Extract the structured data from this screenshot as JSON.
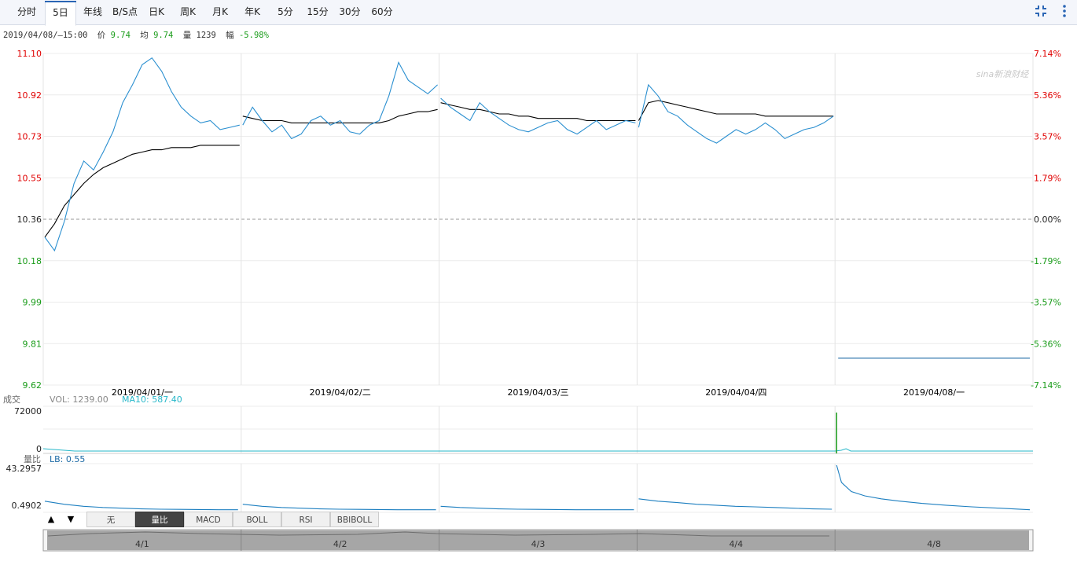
{
  "tabs": [
    {
      "label": "分时",
      "active": false
    },
    {
      "label": "5日",
      "active": true
    },
    {
      "label": "年线",
      "active": false
    },
    {
      "label": "B/S点",
      "active": false
    },
    {
      "label": "日K",
      "active": false
    },
    {
      "label": "周K",
      "active": false
    },
    {
      "label": "月K",
      "active": false
    },
    {
      "label": "年K",
      "active": false
    },
    {
      "label": "5分",
      "active": false
    },
    {
      "label": "15分",
      "active": false
    },
    {
      "label": "30分",
      "active": false
    },
    {
      "label": "60分",
      "active": false
    }
  ],
  "icons": {
    "shrink": "collapse-arrows-icon",
    "more": "more-vertical-icon"
  },
  "info": {
    "datetime": "2019/04/08/—15:00",
    "price_label": "价",
    "price": "9.74",
    "avg_label": "均",
    "avg": "9.74",
    "vol_label": "量",
    "vol": "1239",
    "chg_label": "幅",
    "chg": "-5.98%"
  },
  "watermark": "sina新浪财经",
  "colors": {
    "up": "#e00000",
    "down": "#1a9c1a",
    "price_line": "#2a8fd0",
    "avg_line": "#000000",
    "ma10": "#26b7c9",
    "axis_text": "#333333"
  },
  "chart_data": {
    "type": "line",
    "days": [
      "2019/04/01/一",
      "2019/04/02/二",
      "2019/04/03/三",
      "2019/04/04/四",
      "2019/04/08/一"
    ],
    "prev_close": 10.36,
    "ylim": [
      9.62,
      11.1
    ],
    "price_ticks": [
      "11.10",
      "10.92",
      "10.73",
      "10.55",
      "10.36",
      "10.18",
      "9.99",
      "9.81",
      "9.62"
    ],
    "pct_ticks": [
      "7.14%",
      "5.36%",
      "3.57%",
      "1.79%",
      "0.00%",
      "-1.79%",
      "-3.57%",
      "-5.36%",
      "-7.14%"
    ],
    "series": [
      {
        "day": "2019/04/01",
        "price": [
          10.28,
          10.22,
          10.35,
          10.52,
          10.62,
          10.58,
          10.66,
          10.75,
          10.88,
          10.96,
          11.05,
          11.08,
          11.02,
          10.93,
          10.86,
          10.82,
          10.79,
          10.8,
          10.76,
          10.77,
          10.78
        ],
        "avg": [
          10.28,
          10.34,
          10.42,
          10.47,
          10.52,
          10.56,
          10.59,
          10.61,
          10.63,
          10.65,
          10.66,
          10.67,
          10.67,
          10.68,
          10.68,
          10.68,
          10.69,
          10.69,
          10.69,
          10.69,
          10.69
        ]
      },
      {
        "day": "2019/04/02",
        "price": [
          10.78,
          10.86,
          10.8,
          10.75,
          10.78,
          10.72,
          10.74,
          10.8,
          10.82,
          10.78,
          10.8,
          10.75,
          10.74,
          10.78,
          10.8,
          10.91,
          11.06,
          10.98,
          10.95,
          10.92,
          10.96
        ],
        "avg": [
          10.82,
          10.81,
          10.8,
          10.8,
          10.8,
          10.79,
          10.79,
          10.79,
          10.79,
          10.79,
          10.79,
          10.79,
          10.79,
          10.79,
          10.79,
          10.8,
          10.82,
          10.83,
          10.84,
          10.84,
          10.85
        ]
      },
      {
        "day": "2019/04/03",
        "price": [
          10.9,
          10.86,
          10.83,
          10.8,
          10.88,
          10.84,
          10.81,
          10.78,
          10.76,
          10.75,
          10.77,
          10.79,
          10.8,
          10.76,
          10.74,
          10.77,
          10.8,
          10.76,
          10.78,
          10.8,
          10.79
        ],
        "avg": [
          10.88,
          10.87,
          10.86,
          10.85,
          10.85,
          10.84,
          10.83,
          10.83,
          10.82,
          10.82,
          10.81,
          10.81,
          10.81,
          10.81,
          10.81,
          10.8,
          10.8,
          10.8,
          10.8,
          10.8,
          10.8
        ]
      },
      {
        "day": "2019/04/04",
        "price": [
          10.77,
          10.96,
          10.91,
          10.84,
          10.82,
          10.78,
          10.75,
          10.72,
          10.7,
          10.73,
          10.76,
          10.74,
          10.76,
          10.79,
          10.76,
          10.72,
          10.74,
          10.76,
          10.77,
          10.79,
          10.82
        ],
        "avg": [
          10.8,
          10.88,
          10.89,
          10.88,
          10.87,
          10.86,
          10.85,
          10.84,
          10.83,
          10.83,
          10.83,
          10.83,
          10.83,
          10.82,
          10.82,
          10.82,
          10.82,
          10.82,
          10.82,
          10.82,
          10.82
        ]
      },
      {
        "day": "2019/04/08",
        "price": [
          9.74,
          9.74
        ],
        "avg": [
          9.74,
          9.74
        ]
      }
    ],
    "volume": {
      "label": "成交",
      "vol_label": "VOL: 1239.00",
      "ma10_label": "MA10: 587.40",
      "ticks": [
        "72000",
        "0"
      ],
      "spike": 72000
    },
    "volume_ratio": {
      "label": "量比",
      "lb_label": "LB: 0.55",
      "ticks": [
        "43.2957",
        "0.4902"
      ],
      "series": [
        [
          1.4,
          1.0,
          0.8,
          0.7,
          0.65,
          0.6,
          0.58,
          0.57,
          0.56,
          0.55,
          0.55
        ],
        [
          1.0,
          0.8,
          0.7,
          0.65,
          0.6,
          0.58,
          0.57,
          0.56,
          0.55,
          0.55,
          0.55
        ],
        [
          0.8,
          0.7,
          0.65,
          0.6,
          0.58,
          0.57,
          0.56,
          0.55,
          0.55,
          0.55,
          0.55
        ],
        [
          1.8,
          1.4,
          1.2,
          1.0,
          0.9,
          0.8,
          0.75,
          0.7,
          0.65,
          0.6,
          0.58
        ],
        [
          43.3,
          8,
          4,
          2.5,
          1.8,
          1.4,
          1.1,
          0.9,
          0.75,
          0.65,
          0.55
        ]
      ]
    },
    "nav_labels": [
      "4/1",
      "4/2",
      "4/3",
      "4/4",
      "4/8"
    ]
  },
  "bottom_tabs": [
    {
      "label": "无",
      "active": false
    },
    {
      "label": "量比",
      "active": true
    },
    {
      "label": "MACD",
      "active": false
    },
    {
      "label": "BOLL",
      "active": false
    },
    {
      "label": "RSI",
      "active": false
    },
    {
      "label": "BBIBOLL",
      "active": false
    }
  ],
  "arrows": {
    "up": "▲",
    "down": "▼"
  }
}
